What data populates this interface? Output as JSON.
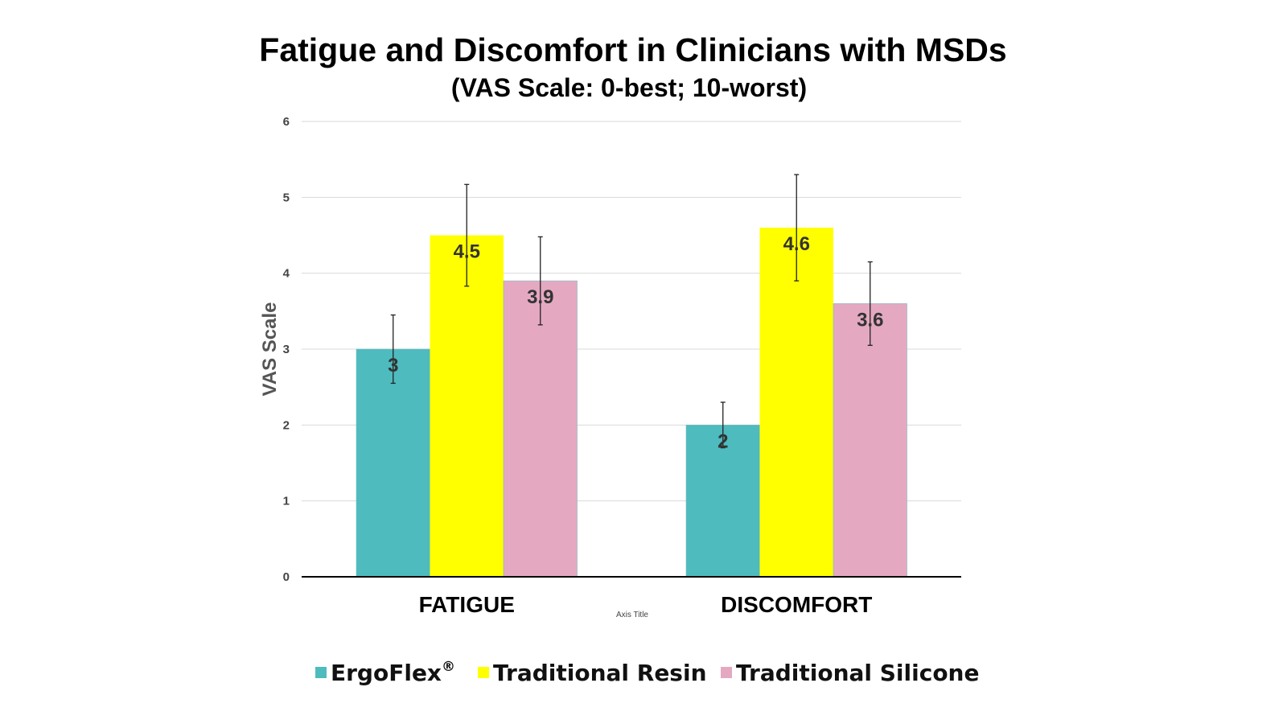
{
  "chart_data": {
    "type": "bar",
    "title": "Fatigue and Discomfort in Clinicians with MSDs",
    "subtitle": "(VAS Scale: 0-best; 10-worst)",
    "xlabel": "Axis Title",
    "ylabel": "VAS Scale",
    "ylim": [
      0,
      6
    ],
    "yticks": [
      0,
      1,
      2,
      3,
      4,
      5,
      6
    ],
    "grid": true,
    "legend_position": "bottom",
    "categories": [
      "FATIGUE",
      "DISCOMFORT"
    ],
    "series": [
      {
        "name": "ErgoFlex",
        "superscript": "®",
        "color": "#4EBBBF",
        "values": [
          3,
          2
        ],
        "labels": [
          "3",
          "2"
        ],
        "error": [
          0.45,
          0.3
        ]
      },
      {
        "name": "Traditional Resin",
        "color": "#FFFF00",
        "values": [
          4.5,
          4.6
        ],
        "labels": [
          "4.5",
          "4.6"
        ],
        "error": [
          0.67,
          0.7
        ]
      },
      {
        "name": "Traditional Silicone",
        "color": "#E4A9C1",
        "values": [
          3.9,
          3.6
        ],
        "labels": [
          "3.9",
          "3.6"
        ],
        "error": [
          0.58,
          0.55
        ]
      }
    ]
  }
}
